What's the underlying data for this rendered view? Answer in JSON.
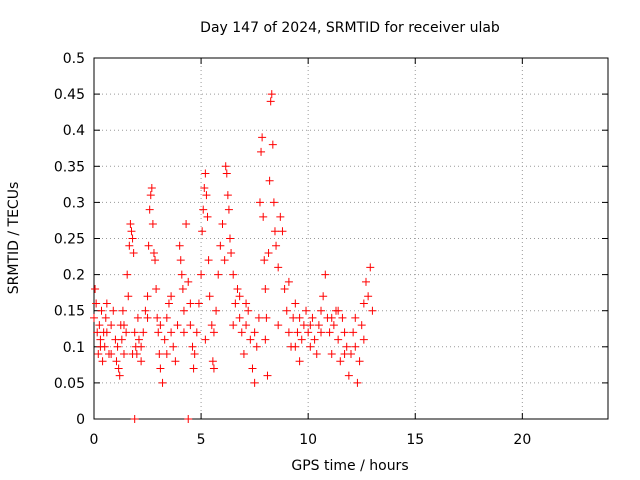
{
  "chart_data": {
    "type": "scatter",
    "title": "Day 147 of 2024, SRMTID for receiver ulab",
    "xlabel": "GPS time / hours",
    "ylabel": "SRMTID / TECUs",
    "xlim": [
      0,
      24
    ],
    "ylim": [
      0,
      0.5
    ],
    "xticks": [
      0,
      5,
      10,
      15,
      20
    ],
    "yticks": [
      0,
      0.05,
      0.1,
      0.15,
      0.2,
      0.25,
      0.3,
      0.35,
      0.4,
      0.45,
      0.5
    ],
    "xtick_labels": [
      "0",
      "5",
      "10",
      "15",
      "20"
    ],
    "ytick_labels": [
      "0",
      "0.05",
      "0.1",
      "0.15",
      "0.2",
      "0.25",
      "0.3",
      "0.35",
      "0.4",
      "0.45",
      "0.5"
    ],
    "grid": true,
    "marker": "plus",
    "color": "#ff0000",
    "series": [
      {
        "name": "SRMTID",
        "points": [
          [
            0.0,
            0.14
          ],
          [
            0.05,
            0.18
          ],
          [
            0.1,
            0.16
          ],
          [
            0.15,
            0.12
          ],
          [
            0.2,
            0.09
          ],
          [
            0.25,
            0.13
          ],
          [
            0.3,
            0.11
          ],
          [
            0.35,
            0.15
          ],
          [
            0.4,
            0.08
          ],
          [
            0.45,
            0.12
          ],
          [
            0.5,
            0.1
          ],
          [
            0.55,
            0.14
          ],
          [
            0.6,
            0.12
          ],
          [
            0.7,
            0.09
          ],
          [
            0.8,
            0.13
          ],
          [
            0.9,
            0.15
          ],
          [
            1.0,
            0.11
          ],
          [
            1.05,
            0.08
          ],
          [
            1.1,
            0.1
          ],
          [
            1.15,
            0.07
          ],
          [
            1.2,
            0.06
          ],
          [
            1.25,
            0.13
          ],
          [
            1.3,
            0.11
          ],
          [
            1.35,
            0.15
          ],
          [
            1.4,
            0.09
          ],
          [
            1.5,
            0.12
          ],
          [
            1.55,
            0.2
          ],
          [
            1.6,
            0.17
          ],
          [
            1.65,
            0.24
          ],
          [
            1.7,
            0.27
          ],
          [
            1.75,
            0.26
          ],
          [
            1.8,
            0.25
          ],
          [
            1.85,
            0.23
          ],
          [
            1.9,
            0.12
          ],
          [
            1.95,
            0.1
          ],
          [
            2.0,
            0.09
          ],
          [
            2.05,
            0.14
          ],
          [
            2.1,
            0.11
          ],
          [
            2.2,
            0.08
          ],
          [
            2.3,
            0.12
          ],
          [
            2.4,
            0.15
          ],
          [
            2.5,
            0.17
          ],
          [
            2.55,
            0.24
          ],
          [
            2.6,
            0.29
          ],
          [
            2.65,
            0.31
          ],
          [
            2.7,
            0.32
          ],
          [
            2.75,
            0.27
          ],
          [
            2.8,
            0.23
          ],
          [
            2.85,
            0.22
          ],
          [
            2.9,
            0.18
          ],
          [
            2.95,
            0.14
          ],
          [
            3.0,
            0.12
          ],
          [
            3.05,
            0.09
          ],
          [
            3.1,
            0.07
          ],
          [
            3.2,
            0.05
          ],
          [
            3.3,
            0.11
          ],
          [
            3.4,
            0.14
          ],
          [
            3.5,
            0.16
          ],
          [
            3.6,
            0.12
          ],
          [
            3.7,
            0.1
          ],
          [
            3.8,
            0.08
          ],
          [
            3.9,
            0.13
          ],
          [
            4.0,
            0.24
          ],
          [
            4.05,
            0.22
          ],
          [
            4.1,
            0.2
          ],
          [
            4.15,
            0.18
          ],
          [
            4.2,
            0.15
          ],
          [
            4.3,
            0.27
          ],
          [
            4.4,
            0.19
          ],
          [
            4.5,
            0.13
          ],
          [
            4.6,
            0.1
          ],
          [
            4.65,
            0.07
          ],
          [
            4.7,
            0.09
          ],
          [
            4.8,
            0.12
          ],
          [
            4.9,
            0.16
          ],
          [
            5.0,
            0.2
          ],
          [
            5.05,
            0.26
          ],
          [
            5.1,
            0.29
          ],
          [
            5.15,
            0.32
          ],
          [
            5.2,
            0.34
          ],
          [
            5.25,
            0.31
          ],
          [
            5.3,
            0.28
          ],
          [
            5.35,
            0.22
          ],
          [
            5.4,
            0.17
          ],
          [
            5.5,
            0.13
          ],
          [
            5.55,
            0.08
          ],
          [
            5.6,
            0.07
          ],
          [
            5.7,
            0.15
          ],
          [
            5.8,
            0.2
          ],
          [
            5.9,
            0.24
          ],
          [
            6.0,
            0.27
          ],
          [
            6.1,
            0.22
          ],
          [
            6.15,
            0.35
          ],
          [
            6.2,
            0.34
          ],
          [
            6.25,
            0.31
          ],
          [
            6.3,
            0.29
          ],
          [
            6.35,
            0.25
          ],
          [
            6.4,
            0.23
          ],
          [
            6.5,
            0.2
          ],
          [
            6.6,
            0.16
          ],
          [
            6.7,
            0.18
          ],
          [
            6.8,
            0.14
          ],
          [
            6.9,
            0.12
          ],
          [
            7.0,
            0.09
          ],
          [
            7.1,
            0.13
          ],
          [
            7.2,
            0.15
          ],
          [
            7.3,
            0.11
          ],
          [
            7.4,
            0.07
          ],
          [
            7.5,
            0.05
          ],
          [
            7.6,
            0.1
          ],
          [
            7.7,
            0.14
          ],
          [
            7.75,
            0.3
          ],
          [
            7.8,
            0.37
          ],
          [
            7.85,
            0.39
          ],
          [
            7.9,
            0.28
          ],
          [
            7.95,
            0.22
          ],
          [
            8.0,
            0.18
          ],
          [
            8.05,
            0.14
          ],
          [
            8.1,
            0.06
          ],
          [
            8.15,
            0.23
          ],
          [
            8.2,
            0.33
          ],
          [
            8.25,
            0.44
          ],
          [
            8.3,
            0.45
          ],
          [
            8.35,
            0.38
          ],
          [
            8.4,
            0.3
          ],
          [
            8.45,
            0.26
          ],
          [
            8.5,
            0.24
          ],
          [
            8.6,
            0.21
          ],
          [
            8.7,
            0.28
          ],
          [
            8.8,
            0.26
          ],
          [
            8.9,
            0.18
          ],
          [
            9.0,
            0.15
          ],
          [
            9.1,
            0.12
          ],
          [
            9.2,
            0.1
          ],
          [
            9.3,
            0.14
          ],
          [
            9.4,
            0.16
          ],
          [
            9.5,
            0.12
          ],
          [
            9.6,
            0.08
          ],
          [
            9.7,
            0.11
          ],
          [
            9.8,
            0.13
          ],
          [
            9.9,
            0.15
          ],
          [
            10.0,
            0.12
          ],
          [
            10.1,
            0.1
          ],
          [
            10.2,
            0.14
          ],
          [
            10.3,
            0.11
          ],
          [
            10.4,
            0.09
          ],
          [
            10.5,
            0.13
          ],
          [
            10.6,
            0.15
          ],
          [
            10.7,
            0.17
          ],
          [
            10.8,
            0.2
          ],
          [
            10.9,
            0.14
          ],
          [
            11.0,
            0.12
          ],
          [
            11.1,
            0.09
          ],
          [
            11.2,
            0.13
          ],
          [
            11.3,
            0.15
          ],
          [
            11.4,
            0.11
          ],
          [
            11.5,
            0.08
          ],
          [
            11.6,
            0.14
          ],
          [
            11.7,
            0.12
          ],
          [
            11.8,
            0.1
          ],
          [
            11.9,
            0.06
          ],
          [
            12.0,
            0.09
          ],
          [
            12.1,
            0.12
          ],
          [
            12.2,
            0.14
          ],
          [
            12.3,
            0.05
          ],
          [
            12.4,
            0.08
          ],
          [
            12.5,
            0.13
          ],
          [
            12.6,
            0.16
          ],
          [
            12.7,
            0.19
          ],
          [
            12.8,
            0.17
          ],
          [
            12.9,
            0.21
          ],
          [
            13.0,
            0.15
          ],
          [
            0.3,
            0.1
          ],
          [
            0.8,
            0.09
          ],
          [
            1.4,
            0.13
          ],
          [
            2.2,
            0.1
          ],
          [
            3.1,
            0.13
          ],
          [
            3.6,
            0.17
          ],
          [
            4.5,
            0.16
          ],
          [
            5.6,
            0.12
          ],
          [
            6.5,
            0.13
          ],
          [
            7.1,
            0.16
          ],
          [
            7.5,
            0.12
          ],
          [
            8.0,
            0.11
          ],
          [
            8.6,
            0.13
          ],
          [
            9.1,
            0.19
          ],
          [
            9.6,
            0.14
          ],
          [
            10.1,
            0.13
          ],
          [
            10.6,
            0.12
          ],
          [
            11.1,
            0.14
          ],
          [
            11.7,
            0.09
          ],
          [
            12.2,
            0.1
          ],
          [
            12.6,
            0.11
          ],
          [
            5.2,
            0.11
          ],
          [
            4.2,
            0.12
          ],
          [
            2.5,
            0.14
          ],
          [
            1.8,
            0.09
          ],
          [
            0.6,
            0.16
          ],
          [
            3.4,
            0.09
          ],
          [
            6.8,
            0.17
          ],
          [
            9.4,
            0.1
          ],
          [
            11.4,
            0.15
          ],
          [
            1.9,
            0.0
          ],
          [
            4.4,
            0.0
          ]
        ]
      }
    ]
  }
}
